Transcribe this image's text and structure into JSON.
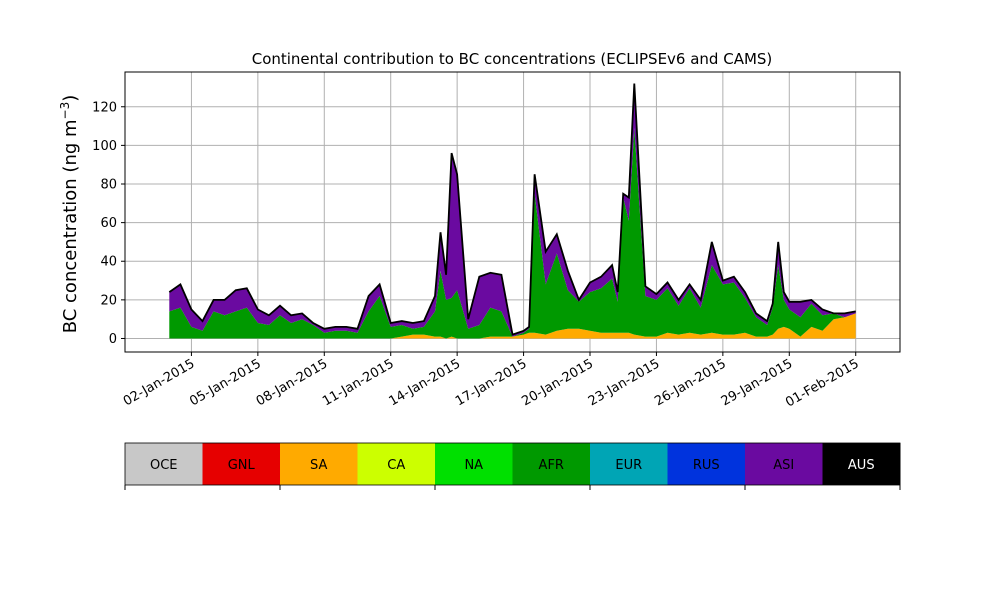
{
  "chart_data": {
    "type": "area",
    "title": "Continental contribution to BC concentrations (ECLIPSEv6 and CAMS)",
    "ylabel": "BC concentration (ng m",
    "ylabel_superscript": "−3",
    "ylabel_suffix": ")",
    "xlabel": "",
    "grid": true,
    "x_range": [
      "2014-12-30",
      "2015-02-03"
    ],
    "ylim": [
      -7,
      138
    ],
    "yticks": [
      0,
      20,
      40,
      60,
      80,
      100,
      120
    ],
    "xticks": [
      {
        "date": "2015-01-02",
        "label": "02-Jan-2015"
      },
      {
        "date": "2015-01-05",
        "label": "05-Jan-2015"
      },
      {
        "date": "2015-01-08",
        "label": "08-Jan-2015"
      },
      {
        "date": "2015-01-11",
        "label": "11-Jan-2015"
      },
      {
        "date": "2015-01-14",
        "label": "14-Jan-2015"
      },
      {
        "date": "2015-01-17",
        "label": "17-Jan-2015"
      },
      {
        "date": "2015-01-20",
        "label": "20-Jan-2015"
      },
      {
        "date": "2015-01-23",
        "label": "23-Jan-2015"
      },
      {
        "date": "2015-01-26",
        "label": "26-Jan-2015"
      },
      {
        "date": "2015-01-29",
        "label": "29-Jan-2015"
      },
      {
        "date": "2015-02-01",
        "label": "01-Feb-2015"
      }
    ],
    "x": [
      "2015-01-01",
      "2015-01-01T12:00",
      "2015-01-02",
      "2015-01-02T12:00",
      "2015-01-03",
      "2015-01-03T12:00",
      "2015-01-04",
      "2015-01-04T12:00",
      "2015-01-05",
      "2015-01-05T12:00",
      "2015-01-06",
      "2015-01-06T12:00",
      "2015-01-07",
      "2015-01-07T12:00",
      "2015-01-08",
      "2015-01-08T12:00",
      "2015-01-09",
      "2015-01-09T12:00",
      "2015-01-10",
      "2015-01-10T12:00",
      "2015-01-11",
      "2015-01-11T12:00",
      "2015-01-12",
      "2015-01-12T12:00",
      "2015-01-13",
      "2015-01-13T06:00",
      "2015-01-13T12:00",
      "2015-01-13T18:00",
      "2015-01-14",
      "2015-01-14T12:00",
      "2015-01-15",
      "2015-01-15T12:00",
      "2015-01-16",
      "2015-01-16T12:00",
      "2015-01-17",
      "2015-01-17T06:00",
      "2015-01-17T12:00",
      "2015-01-18",
      "2015-01-18T12:00",
      "2015-01-19",
      "2015-01-19T12:00",
      "2015-01-20",
      "2015-01-20T12:00",
      "2015-01-21",
      "2015-01-21T06:00",
      "2015-01-21T12:00",
      "2015-01-21T18:00",
      "2015-01-22",
      "2015-01-22T12:00",
      "2015-01-23",
      "2015-01-23T12:00",
      "2015-01-24",
      "2015-01-24T12:00",
      "2015-01-25",
      "2015-01-25T12:00",
      "2015-01-26",
      "2015-01-26T12:00",
      "2015-01-27",
      "2015-01-27T12:00",
      "2015-01-28",
      "2015-01-28T06:00",
      "2015-01-28T12:00",
      "2015-01-28T18:00",
      "2015-01-29",
      "2015-01-29T12:00",
      "2015-01-30",
      "2015-01-30T12:00",
      "2015-01-31",
      "2015-01-31T12:00",
      "2015-02-01"
    ],
    "series": [
      {
        "name": "OCE",
        "color": "#c8c8c8",
        "values": [
          0,
          0,
          0,
          0,
          0,
          0,
          0,
          0,
          0,
          0,
          0,
          0,
          0,
          0,
          0,
          0,
          0,
          0,
          0,
          0,
          0,
          0,
          0,
          0,
          0,
          0,
          0,
          0,
          0,
          0,
          0,
          0,
          0,
          0,
          0,
          0,
          0,
          0,
          0,
          0,
          0,
          0,
          0,
          0,
          0,
          0,
          0,
          0,
          0,
          0,
          0,
          0,
          0,
          0,
          0,
          0,
          0,
          0,
          0,
          0,
          0,
          0,
          0,
          0,
          0,
          0,
          0,
          0,
          0,
          0
        ]
      },
      {
        "name": "GNL",
        "color": "#e60000",
        "values": [
          0,
          0,
          0,
          0,
          0,
          0,
          0,
          0,
          0,
          0,
          0,
          0,
          0,
          0,
          0,
          0,
          0,
          0,
          0,
          0,
          0,
          0,
          0,
          0,
          0,
          0,
          0,
          0,
          0,
          0,
          0,
          0,
          0,
          0,
          0,
          0,
          0,
          0,
          0,
          0,
          0,
          0,
          0,
          0,
          0,
          0,
          0,
          0,
          0,
          0,
          0,
          0,
          0,
          0,
          0,
          0,
          0,
          0,
          0,
          0,
          0,
          0,
          0,
          0,
          0,
          0,
          0,
          0,
          0,
          0
        ]
      },
      {
        "name": "SA",
        "color": "#ffaa00",
        "values": [
          0,
          0,
          0,
          0,
          0,
          0,
          0,
          0,
          0,
          0,
          0,
          0,
          0,
          0,
          0,
          0,
          0,
          0,
          0,
          0,
          0,
          1,
          2,
          2,
          1,
          1,
          0,
          1,
          0,
          0,
          0,
          1,
          1,
          1,
          2,
          3,
          3,
          2,
          4,
          5,
          5,
          4,
          3,
          3,
          3,
          3,
          3,
          2,
          1,
          1,
          3,
          2,
          3,
          2,
          3,
          2,
          2,
          3,
          1,
          1,
          2,
          5,
          6,
          5,
          1,
          6,
          4,
          10,
          11,
          13
        ]
      },
      {
        "name": "CA",
        "color": "#ccff00",
        "values": [
          0,
          0,
          0,
          0,
          0,
          0,
          0,
          0,
          0,
          0,
          0,
          0,
          0,
          0,
          0,
          0,
          0,
          0,
          0,
          0,
          0,
          0,
          0,
          0,
          0,
          0,
          0,
          0,
          0,
          0,
          0,
          0,
          0,
          0,
          0,
          0,
          0,
          0,
          0,
          0,
          0,
          0,
          0,
          0,
          0,
          0,
          0,
          0,
          0,
          0,
          0,
          0,
          0,
          0,
          0,
          0,
          0,
          0,
          0,
          0,
          0,
          0,
          0,
          0,
          0,
          0,
          0,
          0,
          0,
          0
        ]
      },
      {
        "name": "NA",
        "color": "#00e000",
        "values": [
          0,
          0,
          0,
          0,
          0,
          0,
          0,
          0,
          0,
          0,
          0,
          0,
          0,
          0,
          0,
          0,
          0,
          0,
          0,
          0,
          0,
          0,
          0,
          0,
          0,
          0,
          0,
          0,
          0,
          0,
          0,
          0,
          0,
          0,
          0,
          0,
          0,
          0,
          0,
          0,
          0,
          0,
          0,
          0,
          0,
          0,
          0,
          0,
          0,
          0,
          0,
          0,
          0,
          0,
          0,
          0,
          0,
          0,
          0,
          0,
          0,
          0,
          0,
          0,
          0,
          0,
          0,
          0,
          0,
          0
        ]
      },
      {
        "name": "AFR",
        "color": "#009900",
        "values": [
          14,
          16,
          6,
          4,
          14,
          12,
          14,
          16,
          8,
          7,
          12,
          8,
          10,
          7,
          3,
          4,
          4,
          3,
          14,
          22,
          6,
          6,
          3,
          4,
          13,
          34,
          20,
          20,
          25,
          5,
          7,
          15,
          13,
          0,
          1,
          2,
          72,
          26,
          40,
          20,
          14,
          20,
          23,
          28,
          16,
          70,
          58,
          107,
          21,
          19,
          23,
          15,
          23,
          14,
          35,
          26,
          27,
          18,
          10,
          6,
          14,
          33,
          14,
          10,
          10,
          12,
          8,
          3,
          0,
          0
        ]
      },
      {
        "name": "EUR",
        "color": "#00a5b5",
        "values": [
          0,
          0,
          0,
          0,
          0,
          0,
          0,
          0,
          0,
          0,
          0,
          0,
          0,
          0,
          0,
          0,
          0,
          0,
          0,
          0,
          0,
          0,
          0,
          0,
          0,
          0,
          0,
          0,
          0,
          0,
          0,
          0,
          0,
          0,
          0,
          0,
          0,
          0,
          0,
          0,
          0,
          0,
          0,
          0,
          0,
          0,
          0,
          0,
          0,
          0,
          0,
          0,
          0,
          0,
          0,
          0,
          0,
          0,
          0,
          0,
          0,
          0,
          0,
          0,
          0,
          0,
          0,
          0,
          0,
          0
        ]
      },
      {
        "name": "RUS",
        "color": "#0033dd",
        "values": [
          0,
          0,
          0,
          0,
          0,
          0,
          0,
          0,
          0,
          0,
          0,
          0,
          0,
          0,
          0,
          0,
          0,
          0,
          0,
          0,
          0,
          0,
          0,
          0,
          0,
          0,
          0,
          0,
          0,
          0,
          0,
          0,
          0,
          0,
          0,
          0,
          0,
          0,
          0,
          0,
          0,
          0,
          0,
          0,
          0,
          0,
          0,
          0,
          0,
          0,
          0,
          0,
          0,
          0,
          0,
          0,
          0,
          0,
          0,
          0,
          0,
          0,
          0,
          0,
          0,
          0,
          0,
          0,
          0,
          0
        ]
      },
      {
        "name": "ASI",
        "color": "#6a0aa0",
        "values": [
          10,
          12,
          9,
          5,
          6,
          8,
          11,
          10,
          7,
          5,
          5,
          4,
          3,
          1,
          2,
          2,
          2,
          2,
          8,
          6,
          2,
          2,
          3,
          3,
          8,
          20,
          13,
          75,
          60,
          5,
          25,
          18,
          19,
          1,
          1,
          1,
          10,
          17,
          10,
          10,
          1,
          5,
          6,
          7,
          5,
          2,
          12,
          23,
          5,
          3,
          3,
          3,
          2,
          4,
          12,
          2,
          3,
          3,
          2,
          2,
          2,
          12,
          4,
          4,
          8,
          2,
          3,
          0,
          2,
          1
        ]
      },
      {
        "name": "AUS",
        "color": "#000000",
        "values": [
          0,
          0,
          0,
          0,
          0,
          0,
          0,
          0,
          0,
          0,
          0,
          0,
          0,
          0,
          0,
          0,
          0,
          0,
          0,
          0,
          0,
          0,
          0,
          0,
          0,
          0,
          0,
          0,
          0,
          0,
          0,
          0,
          0,
          0,
          0,
          0,
          0,
          0,
          0,
          0,
          0,
          0,
          0,
          0,
          0,
          0,
          0,
          0,
          0,
          0,
          0,
          0,
          0,
          0,
          0,
          0,
          0,
          0,
          0,
          0,
          0,
          0,
          0,
          0,
          0,
          0,
          0,
          0,
          0,
          0
        ]
      }
    ],
    "legend": {
      "placement": "below",
      "entries": [
        {
          "label": "OCE",
          "color": "#c8c8c8",
          "text_color": "#000000"
        },
        {
          "label": "GNL",
          "color": "#e60000",
          "text_color": "#000000"
        },
        {
          "label": "SA",
          "color": "#ffaa00",
          "text_color": "#000000"
        },
        {
          "label": "CA",
          "color": "#ccff00",
          "text_color": "#000000"
        },
        {
          "label": "NA",
          "color": "#00e000",
          "text_color": "#000000"
        },
        {
          "label": "AFR",
          "color": "#009900",
          "text_color": "#000000"
        },
        {
          "label": "EUR",
          "color": "#00a5b5",
          "text_color": "#000000"
        },
        {
          "label": "RUS",
          "color": "#0033dd",
          "text_color": "#000000"
        },
        {
          "label": "ASI",
          "color": "#6a0aa0",
          "text_color": "#000000"
        },
        {
          "label": "AUS",
          "color": "#000000",
          "text_color": "#ffffff"
        }
      ]
    }
  }
}
